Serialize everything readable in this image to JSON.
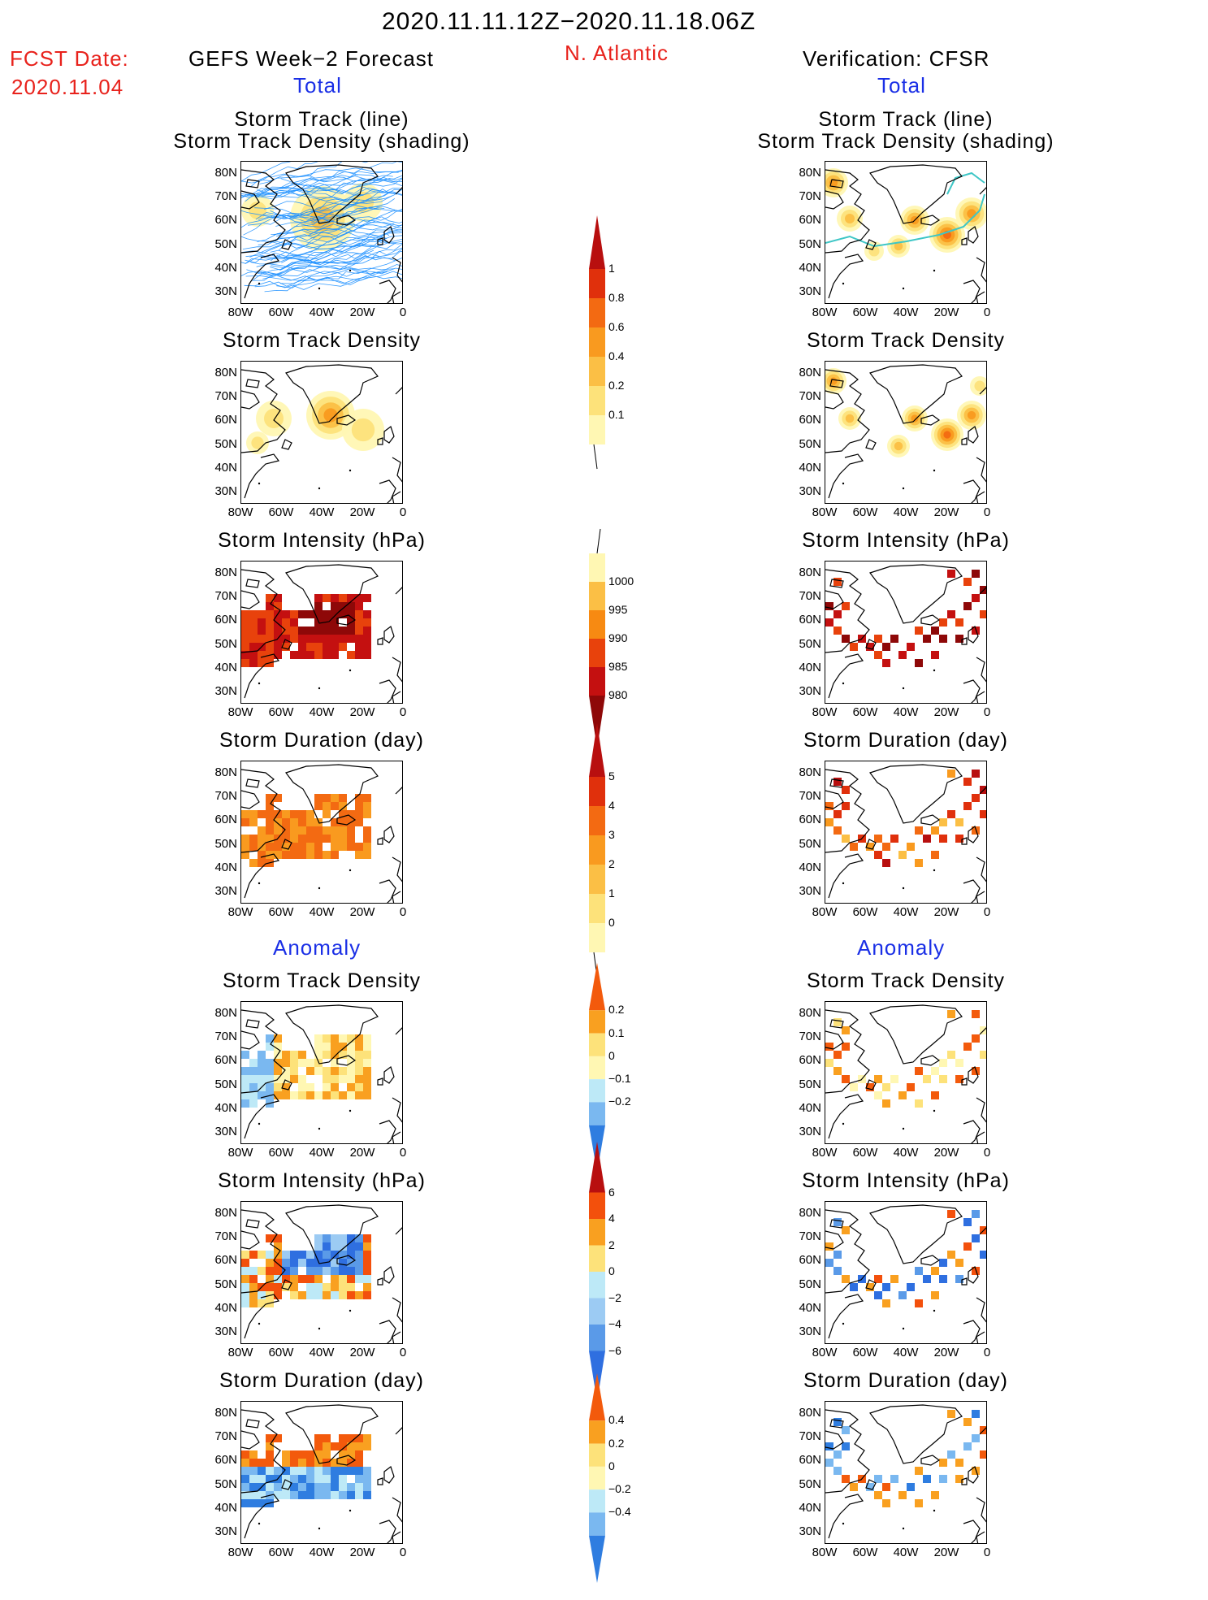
{
  "header": {
    "date_range": "2020.11.11.12Z−2020.11.18.06Z",
    "fcst_label": "FCST Date:",
    "fcst_date": "2020.11.04",
    "left_title": "GEFS Week−2 Forecast",
    "region": "N. Atlantic",
    "right_title": "Verification: CFSR",
    "total_label": "Total",
    "anomaly_label": "Anomaly"
  },
  "panel_titles": {
    "track_line": "Storm Track (line)",
    "track_shading": "Storm Track Density (shading)",
    "track_density": "Storm Track Density",
    "intensity": "Storm Intensity (hPa)",
    "duration": "Storm Duration (day)"
  },
  "axes": {
    "lat_ticks": [
      "80N",
      "70N",
      "60N",
      "50N",
      "40N",
      "30N"
    ],
    "lon_ticks": [
      "80W",
      "60W",
      "40W",
      "20W",
      "0"
    ]
  },
  "colors": {
    "text_red": "#e8221c",
    "text_blue": "#1a2fe6",
    "track_line": "#1e90ff",
    "verif_track": "#3ec6c6"
  },
  "chart_data": {
    "type": "heatmap",
    "region": "N. Atlantic",
    "lon_range": [
      -80,
      0
    ],
    "lat_range": [
      25,
      85
    ],
    "panels": [
      {
        "row": 1,
        "column": "forecast",
        "section": "Total",
        "variable": "Storm Track Density (shading)",
        "overlay": "Storm Track (line)"
      },
      {
        "row": 1,
        "column": "verification",
        "section": "Total",
        "variable": "Storm Track Density (shading)",
        "overlay": "Storm Track (line)"
      },
      {
        "row": 2,
        "column": "forecast",
        "section": "Total",
        "variable": "Storm Track Density"
      },
      {
        "row": 2,
        "column": "verification",
        "section": "Total",
        "variable": "Storm Track Density"
      },
      {
        "row": 3,
        "column": "forecast",
        "section": "Total",
        "variable": "Storm Intensity (hPa)"
      },
      {
        "row": 3,
        "column": "verification",
        "section": "Total",
        "variable": "Storm Intensity (hPa)"
      },
      {
        "row": 4,
        "column": "forecast",
        "section": "Total",
        "variable": "Storm Duration (day)"
      },
      {
        "row": 4,
        "column": "verification",
        "section": "Total",
        "variable": "Storm Duration (day)"
      },
      {
        "row": 5,
        "column": "forecast",
        "section": "Anomaly",
        "variable": "Storm Track Density"
      },
      {
        "row": 5,
        "column": "verification",
        "section": "Anomaly",
        "variable": "Storm Track Density"
      },
      {
        "row": 6,
        "column": "forecast",
        "section": "Anomaly",
        "variable": "Storm Intensity (hPa)"
      },
      {
        "row": 6,
        "column": "verification",
        "section": "Anomaly",
        "variable": "Storm Intensity (hPa)"
      },
      {
        "row": 7,
        "column": "forecast",
        "section": "Anomaly",
        "variable": "Storm Duration (day)"
      },
      {
        "row": 7,
        "column": "verification",
        "section": "Anomaly",
        "variable": "Storm Duration (day)"
      }
    ],
    "colorbars": {
      "track_density_total": {
        "levels": [
          "0.1",
          "0.2",
          "0.4",
          "0.6",
          "0.8",
          "1"
        ],
        "colors": [
          "#fff7b3",
          "#fde27a",
          "#fbbf45",
          "#f99a1f",
          "#f36a12",
          "#e0300c",
          "#b80f0f"
        ]
      },
      "intensity_total": {
        "levels": [
          "1000",
          "995",
          "990",
          "985",
          "980"
        ],
        "colors": [
          "#fff7b3",
          "#fbbf45",
          "#f78a12",
          "#e8420c",
          "#c41010",
          "#8e0808"
        ]
      },
      "duration_total": {
        "levels": [
          "0",
          "1",
          "2",
          "3",
          "4",
          "5"
        ],
        "colors": [
          "#fff7b3",
          "#fde27a",
          "#fbbf45",
          "#f99a1f",
          "#f36a12",
          "#e0300c",
          "#b80f0f"
        ]
      },
      "track_density_anomaly": {
        "levels": [
          "0.2",
          "0.1",
          "0",
          "−0.1",
          "−0.2"
        ],
        "colors": [
          "#f35a0c",
          "#f9a020",
          "#fde27a",
          "#fff7b3",
          "#bde9f7",
          "#7ab8f0",
          "#2f7de0"
        ]
      },
      "intensity_anomaly": {
        "levels": [
          "6",
          "4",
          "2",
          "0",
          "−2",
          "−4",
          "−6"
        ],
        "colors": [
          "#b80f0f",
          "#f3500c",
          "#f9a020",
          "#fde27a",
          "#bde9f7",
          "#9ccbf3",
          "#5a9ae8",
          "#2f6fe0"
        ]
      },
      "duration_anomaly": {
        "levels": [
          "0.4",
          "0.2",
          "0",
          "−0.2",
          "−0.4"
        ],
        "colors": [
          "#f35a0c",
          "#f9a020",
          "#fde27a",
          "#fff7b3",
          "#bde9f7",
          "#7ab8f0",
          "#2f7de0"
        ]
      }
    }
  }
}
